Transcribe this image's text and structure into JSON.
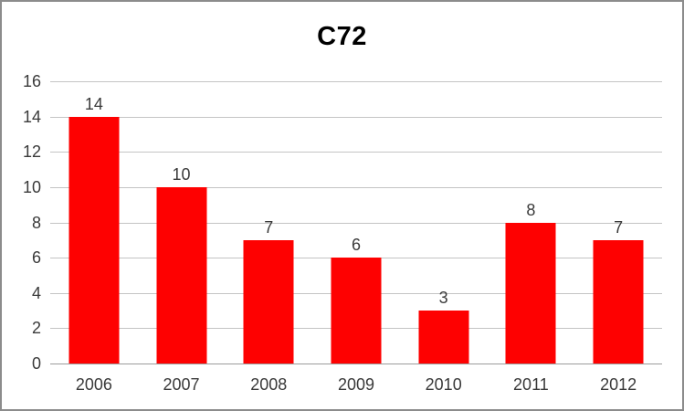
{
  "chart_data": {
    "type": "bar",
    "title": "C72",
    "categories": [
      "2006",
      "2007",
      "2008",
      "2009",
      "2010",
      "2011",
      "2012"
    ],
    "values": [
      14,
      10,
      7,
      6,
      3,
      8,
      7
    ],
    "data_labels": [
      14,
      10,
      7,
      6,
      3,
      8,
      7
    ],
    "xlabel": "",
    "ylabel": "",
    "ylim": [
      0,
      16
    ],
    "ytick_step": 2,
    "yticks": [
      0,
      2,
      4,
      6,
      8,
      10,
      12,
      14,
      16
    ],
    "grid": true,
    "legend": "none",
    "colors": {
      "bar": "#fe0101",
      "gridline": "#c4c4c4",
      "axis_line": "#9c9c9c",
      "tick_text": "#3a3a3a",
      "title_text": "#000000",
      "background": "#ffffff",
      "frame_border": "#8c8c8c"
    }
  }
}
